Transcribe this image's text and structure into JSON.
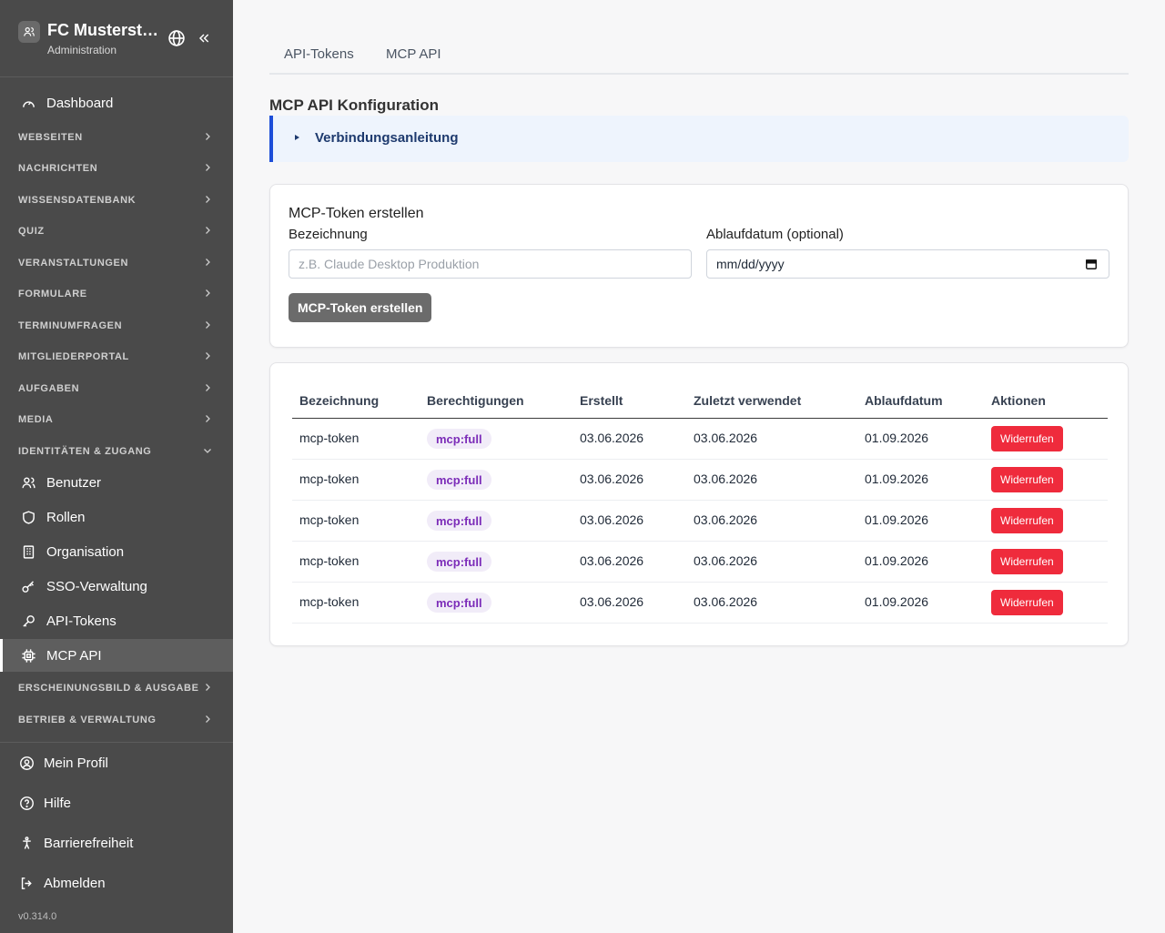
{
  "sidebar": {
    "org_name": "FC Musterst…",
    "org_subtitle": "Administration",
    "dashboard": "Dashboard",
    "sections": [
      {
        "label": "WEBSEITEN"
      },
      {
        "label": "NACHRICHTEN"
      },
      {
        "label": "WISSENSDATENBANK"
      },
      {
        "label": "QUIZ"
      },
      {
        "label": "VERANSTALTUNGEN"
      },
      {
        "label": "FORMULARE"
      },
      {
        "label": "TERMINUMFRAGEN"
      },
      {
        "label": "MITGLIEDERPORTAL"
      },
      {
        "label": "AUFGABEN"
      },
      {
        "label": "MEDIA"
      },
      {
        "label": "IDENTITÄTEN & ZUGANG"
      }
    ],
    "identity_items": [
      {
        "label": "Benutzer",
        "icon": "users-icon"
      },
      {
        "label": "Rollen",
        "icon": "shield-icon"
      },
      {
        "label": "Organisation",
        "icon": "building-icon"
      },
      {
        "label": "SSO-Verwaltung",
        "icon": "key-icon"
      },
      {
        "label": "API-Tokens",
        "icon": "wrench-key-icon"
      },
      {
        "label": "MCP API",
        "icon": "chip-icon"
      }
    ],
    "sections_after": [
      {
        "label": "ERSCHEINUNGSBILD & AUSGABE"
      },
      {
        "label": "BETRIEB & VERWALTUNG"
      }
    ],
    "footer": [
      {
        "label": "Mein Profil",
        "icon": "user-circle-icon"
      },
      {
        "label": "Hilfe",
        "icon": "help-circle-icon"
      },
      {
        "label": "Barrierefreiheit",
        "icon": "accessibility-icon"
      },
      {
        "label": "Abmelden",
        "icon": "logout-icon"
      }
    ],
    "version": "v0.314.0"
  },
  "tabs": [
    {
      "label": "API-Tokens"
    },
    {
      "label": "MCP API"
    }
  ],
  "page_title": "MCP API Konfiguration",
  "callout_label": "Verbindungsanleitung",
  "create_form": {
    "title": "MCP-Token erstellen",
    "name_label": "Bezeichnung",
    "name_placeholder": "z.B. Claude Desktop Produktion",
    "expiry_label": "Ablaufdatum (optional)",
    "expiry_value": "mm/dd/yyyy",
    "submit_label": "MCP-Token erstellen"
  },
  "table": {
    "headers": [
      "Bezeichnung",
      "Berechtigungen",
      "Erstellt",
      "Zuletzt verwendet",
      "Ablaufdatum",
      "Aktionen"
    ],
    "rows": [
      {
        "name": "mcp-token",
        "scope": "mcp:full",
        "created": "03.06.2026",
        "last_used": "03.06.2026",
        "expires": "01.09.2026",
        "action": "Widerrufen"
      },
      {
        "name": "mcp-token",
        "scope": "mcp:full",
        "created": "03.06.2026",
        "last_used": "03.06.2026",
        "expires": "01.09.2026",
        "action": "Widerrufen"
      },
      {
        "name": "mcp-token",
        "scope": "mcp:full",
        "created": "03.06.2026",
        "last_used": "03.06.2026",
        "expires": "01.09.2026",
        "action": "Widerrufen"
      },
      {
        "name": "mcp-token",
        "scope": "mcp:full",
        "created": "03.06.2026",
        "last_used": "03.06.2026",
        "expires": "01.09.2026",
        "action": "Widerrufen"
      },
      {
        "name": "mcp-token",
        "scope": "mcp:full",
        "created": "03.06.2026",
        "last_used": "03.06.2026",
        "expires": "01.09.2026",
        "action": "Widerrufen"
      }
    ]
  },
  "colors": {
    "sidebar_bg": "#4a4a4a",
    "callout_border": "#1d4ed8",
    "revoke_bg": "#ef2b3c",
    "chip_text": "#7b2bb8"
  }
}
